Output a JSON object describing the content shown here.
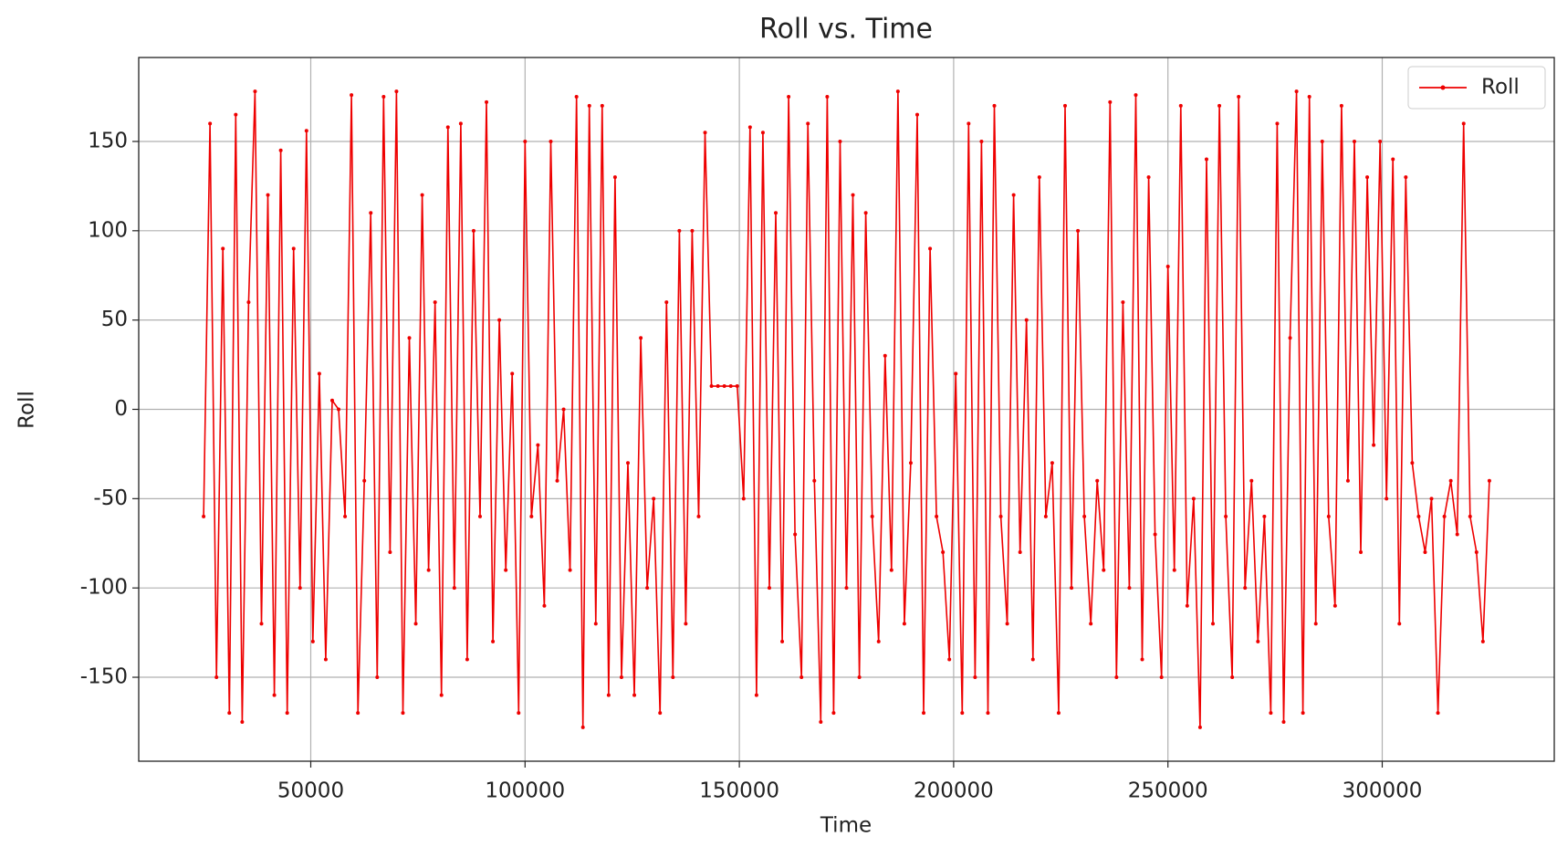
{
  "chart_data": {
    "type": "line",
    "title": "Roll vs. Time",
    "x_label": "Time",
    "y_label": "Roll",
    "x": [
      25000,
      26500,
      28000,
      29500,
      31000,
      32500,
      34000,
      35500,
      37000,
      38500,
      40000,
      41500,
      43000,
      44500,
      46000,
      47500,
      49000,
      50500,
      52000,
      53500,
      55000,
      56500,
      58000,
      59500,
      61000,
      62500,
      64000,
      65500,
      67000,
      68500,
      70000,
      71500,
      73000,
      74500,
      76000,
      77500,
      79000,
      80500,
      82000,
      83500,
      85000,
      86500,
      88000,
      89500,
      91000,
      92500,
      94000,
      95500,
      97000,
      98500,
      100000,
      101500,
      103000,
      104500,
      106000,
      107500,
      109000,
      110500,
      112000,
      113500,
      115000,
      116500,
      118000,
      119500,
      121000,
      122500,
      124000,
      125500,
      127000,
      128500,
      130000,
      131500,
      133000,
      134500,
      136000,
      137500,
      139000,
      140500,
      142000,
      143500,
      145000,
      146500,
      148000,
      149500,
      151000,
      152500,
      154000,
      155500,
      157000,
      158500,
      160000,
      161500,
      163000,
      164500,
      166000,
      167500,
      169000,
      170500,
      172000,
      173500,
      175000,
      176500,
      178000,
      179500,
      181000,
      182500,
      184000,
      185500,
      187000,
      188500,
      190000,
      191500,
      193000,
      194500,
      196000,
      197500,
      199000,
      200500,
      202000,
      203500,
      205000,
      206500,
      208000,
      209500,
      211000,
      212500,
      214000,
      215500,
      217000,
      218500,
      220000,
      221500,
      223000,
      224500,
      226000,
      227500,
      229000,
      230500,
      232000,
      233500,
      235000,
      236500,
      238000,
      239500,
      241000,
      242500,
      244000,
      245500,
      247000,
      248500,
      250000,
      251500,
      253000,
      254500,
      256000,
      257500,
      259000,
      260500,
      262000,
      263500,
      265000,
      266500,
      268000,
      269500,
      271000,
      272500,
      274000,
      275500,
      277000,
      278500,
      280000,
      281500,
      283000,
      284500,
      286000,
      287500,
      289000,
      290500,
      292000,
      293500,
      295000,
      296500,
      298000,
      299500,
      301000,
      302500,
      304000,
      305500,
      307000,
      308500,
      310000,
      311500,
      313000,
      314500,
      316000,
      317500,
      319000,
      320500,
      322000,
      323500,
      325000
    ],
    "series": [
      {
        "name": "Roll",
        "color": "#ee0000",
        "values": [
          -60,
          160,
          -150,
          90,
          -170,
          165,
          -175,
          60,
          178,
          -120,
          120,
          -160,
          145,
          -170,
          90,
          -100,
          156,
          -130,
          20,
          -140,
          5,
          0,
          -60,
          176,
          -170,
          -40,
          110,
          -150,
          175,
          -80,
          178,
          -170,
          40,
          -120,
          120,
          -90,
          60,
          -160,
          158,
          -100,
          160,
          -140,
          100,
          -60,
          172,
          -130,
          50,
          -90,
          20,
          -170,
          150,
          -60,
          -20,
          -110,
          150,
          -40,
          0,
          -90,
          175,
          -178,
          170,
          -120,
          170,
          -160,
          130,
          -150,
          -30,
          -160,
          40,
          -100,
          -50,
          -170,
          60,
          -150,
          100,
          -120,
          100,
          -60,
          155,
          13,
          13,
          13,
          13,
          13,
          -50,
          158,
          -160,
          155,
          -100,
          110,
          -130,
          175,
          -70,
          -150,
          160,
          -40,
          -175,
          175,
          -170,
          150,
          -100,
          120,
          -150,
          110,
          -60,
          -130,
          30,
          -90,
          178,
          -120,
          -30,
          165,
          -170,
          90,
          -60,
          -80,
          -140,
          20,
          -170,
          160,
          -150,
          150,
          -170,
          170,
          -60,
          -120,
          120,
          -80,
          50,
          -140,
          130,
          -60,
          -30,
          -170,
          170,
          -100,
          100,
          -60,
          -120,
          -40,
          -90,
          172,
          -150,
          60,
          -100,
          176,
          -140,
          130,
          -70,
          -150,
          80,
          -90,
          170,
          -110,
          -50,
          -178,
          140,
          -120,
          170,
          -60,
          -150,
          175,
          -100,
          -40,
          -130,
          -60,
          -170,
          160,
          -175,
          40,
          178,
          -170,
          175,
          -120,
          150,
          -60,
          -110,
          170,
          -40,
          150,
          -80,
          130,
          -20,
          150,
          -50,
          140,
          -120,
          130,
          -30,
          -60,
          -80,
          -50,
          -170,
          -60,
          -40,
          -70,
          160,
          -60,
          -80,
          -130,
          -40
        ]
      }
    ],
    "xlim": [
      9860,
      340140
    ],
    "ylim": [
      -197,
      197
    ],
    "xticks": [
      50000,
      100000,
      150000,
      200000,
      250000,
      300000
    ],
    "yticks": [
      -150,
      -100,
      -50,
      0,
      50,
      100,
      150
    ],
    "grid": true,
    "legend": "upper right"
  }
}
